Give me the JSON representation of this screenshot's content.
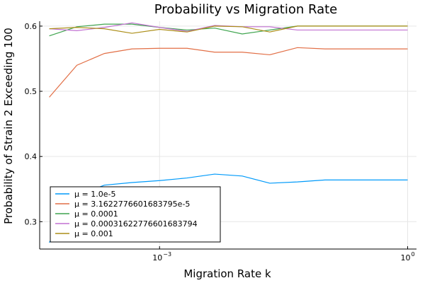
{
  "chart_data": {
    "type": "line",
    "title": "Probability vs Migration Rate",
    "xlabel": "Migration Rate k",
    "ylabel": "Probability of Strain 2 Exceeding 100",
    "xscale": "log10",
    "xlim": [
      3.55e-05,
      1.28
    ],
    "ylim": [
      0.258,
      0.6075
    ],
    "grid": true,
    "legend_position": "bottom-left",
    "x_ticks": [
      {
        "value": 0.001,
        "base": "10",
        "exp": "−3"
      },
      {
        "value": 1,
        "base": "10",
        "exp": "0"
      }
    ],
    "y_ticks": [
      {
        "value": 0.3,
        "label": "0.3"
      },
      {
        "value": 0.4,
        "label": "0.4"
      },
      {
        "value": 0.5,
        "label": "0.5"
      },
      {
        "value": 0.6,
        "label": "0.6"
      }
    ],
    "x": [
      4.64e-05,
      0.0001,
      0.000215,
      0.000464,
      0.001,
      0.00215,
      0.00464,
      0.01,
      0.0215,
      0.0464,
      0.1,
      0.215,
      0.464,
      1.0
    ],
    "series": [
      {
        "name": "μ = 1.0e-5",
        "color": "#009AFA",
        "values": [
          0.268,
          0.34,
          0.356,
          0.36,
          0.363,
          0.367,
          0.373,
          0.37,
          0.359,
          0.361,
          0.364,
          0.364,
          0.364,
          0.364
        ]
      },
      {
        "name": "μ = 3.1622776601683795e-5",
        "color": "#E26F46",
        "values": [
          0.491,
          0.54,
          0.558,
          0.565,
          0.566,
          0.566,
          0.56,
          0.56,
          0.556,
          0.567,
          0.565,
          0.565,
          0.565,
          0.565
        ]
      },
      {
        "name": "μ = 0.0001",
        "color": "#3EA44E",
        "values": [
          0.585,
          0.599,
          0.603,
          0.603,
          0.598,
          0.594,
          0.597,
          0.588,
          0.594,
          0.6,
          0.6,
          0.6,
          0.6,
          0.6
        ]
      },
      {
        "name": "μ = 0.00031622776601683794",
        "color": "#C271D2",
        "values": [
          0.596,
          0.593,
          0.598,
          0.605,
          0.598,
          0.592,
          0.601,
          0.599,
          0.599,
          0.594,
          0.594,
          0.594,
          0.594,
          0.594
        ]
      },
      {
        "name": "μ = 0.001",
        "color": "#AC8E18",
        "values": [
          0.596,
          0.598,
          0.596,
          0.589,
          0.595,
          0.591,
          0.6,
          0.599,
          0.591,
          0.6,
          0.6,
          0.6,
          0.6,
          0.6
        ]
      }
    ]
  }
}
